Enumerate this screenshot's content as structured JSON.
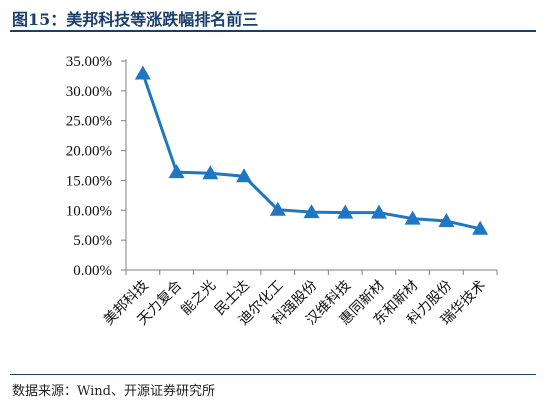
{
  "header": {
    "title": "图15：美邦科技等涨跌幅排名前三"
  },
  "footer": {
    "source": "数据来源：Wind、开源证券研究所"
  },
  "colors": {
    "series": "#1f77c4",
    "title": "#1a3e6e",
    "axis": "#7f7f7f"
  },
  "chart_data": {
    "type": "line",
    "categories": [
      "美邦科技",
      "天力复合",
      "能之光",
      "民士达",
      "迪尔化工",
      "科强股份",
      "汉维科技",
      "惠同新材",
      "东和新材",
      "科力股份",
      "瑞华技术"
    ],
    "series": [
      {
        "values": [
          32.9,
          16.4,
          16.2,
          15.7,
          10.1,
          9.7,
          9.6,
          9.6,
          8.6,
          8.2,
          6.9
        ],
        "marker": "triangle"
      }
    ],
    "yticks": [
      "0.00%",
      "5.00%",
      "10.00%",
      "15.00%",
      "20.00%",
      "25.00%",
      "30.00%",
      "35.00%"
    ],
    "ylim": [
      0,
      35
    ],
    "ystep": 5,
    "grid": false,
    "legend": "none"
  }
}
